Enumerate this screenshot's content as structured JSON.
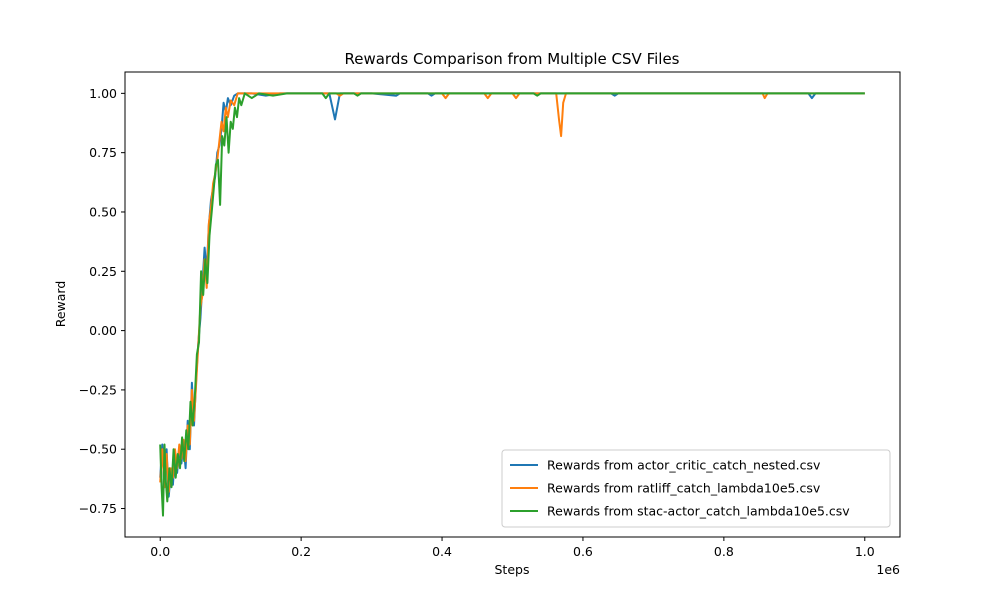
{
  "chart_data": {
    "type": "line",
    "title": "Rewards Comparison from Multiple CSV Files",
    "xlabel": "Steps",
    "ylabel": "Reward",
    "x_offset_label": "1e6",
    "xlim": [
      -50000,
      1050000
    ],
    "ylim": [
      -0.87,
      1.09
    ],
    "x_ticks": [
      0,
      200000,
      400000,
      600000,
      800000,
      1000000
    ],
    "x_tick_labels": [
      "0.0",
      "0.2",
      "0.4",
      "0.6",
      "0.8",
      "1.0"
    ],
    "y_ticks": [
      -0.75,
      -0.5,
      -0.25,
      0.0,
      0.25,
      0.5,
      0.75,
      1.0
    ],
    "y_tick_labels": [
      "−0.75",
      "−0.50",
      "−0.25",
      "0.00",
      "0.25",
      "0.50",
      "0.75",
      "1.00"
    ],
    "grid": false,
    "legend_position": "lower-right",
    "series": [
      {
        "name": "Rewards from actor_critic_catch_nested.csv",
        "color": "#1f77b4",
        "points": [
          [
            0,
            -0.62
          ],
          [
            3000,
            -0.48
          ],
          [
            6000,
            -0.66
          ],
          [
            9000,
            -0.5
          ],
          [
            12000,
            -0.7
          ],
          [
            15000,
            -0.6
          ],
          [
            18000,
            -0.65
          ],
          [
            21000,
            -0.52
          ],
          [
            24000,
            -0.6
          ],
          [
            27000,
            -0.5
          ],
          [
            30000,
            -0.56
          ],
          [
            33000,
            -0.48
          ],
          [
            36000,
            -0.58
          ],
          [
            39000,
            -0.38
          ],
          [
            42000,
            -0.5
          ],
          [
            45000,
            -0.22
          ],
          [
            48000,
            -0.4
          ],
          [
            51000,
            -0.2
          ],
          [
            54000,
            -0.05
          ],
          [
            57000,
            0.05
          ],
          [
            60000,
            0.2
          ],
          [
            63000,
            0.35
          ],
          [
            66000,
            0.25
          ],
          [
            69000,
            0.44
          ],
          [
            72000,
            0.55
          ],
          [
            75000,
            0.6
          ],
          [
            78000,
            0.65
          ],
          [
            81000,
            0.75
          ],
          [
            84000,
            0.78
          ],
          [
            87000,
            0.85
          ],
          [
            90000,
            0.96
          ],
          [
            93000,
            0.92
          ],
          [
            96000,
            0.98
          ],
          [
            100000,
            0.95
          ],
          [
            105000,
            0.99
          ],
          [
            110000,
            1.0
          ],
          [
            130000,
            1.0
          ],
          [
            150000,
            0.99
          ],
          [
            170000,
            1.0
          ],
          [
            200000,
            1.0
          ],
          [
            240000,
            1.0
          ],
          [
            248000,
            0.89
          ],
          [
            255000,
            1.0
          ],
          [
            300000,
            1.0
          ],
          [
            335000,
            0.99
          ],
          [
            340000,
            1.0
          ],
          [
            380000,
            1.0
          ],
          [
            385000,
            0.99
          ],
          [
            390000,
            1.0
          ],
          [
            500000,
            1.0
          ],
          [
            640000,
            1.0
          ],
          [
            645000,
            0.99
          ],
          [
            650000,
            1.0
          ],
          [
            920000,
            1.0
          ],
          [
            925000,
            0.98
          ],
          [
            930000,
            1.0
          ],
          [
            1000000,
            1.0
          ]
        ]
      },
      {
        "name": "Rewards from ratliff_catch_lambda10e5.csv",
        "color": "#ff7f0e",
        "points": [
          [
            0,
            -0.64
          ],
          [
            3000,
            -0.5
          ],
          [
            6000,
            -0.66
          ],
          [
            9000,
            -0.52
          ],
          [
            12000,
            -0.68
          ],
          [
            15000,
            -0.58
          ],
          [
            18000,
            -0.62
          ],
          [
            21000,
            -0.5
          ],
          [
            24000,
            -0.58
          ],
          [
            27000,
            -0.48
          ],
          [
            30000,
            -0.54
          ],
          [
            33000,
            -0.46
          ],
          [
            36000,
            -0.55
          ],
          [
            39000,
            -0.4
          ],
          [
            42000,
            -0.48
          ],
          [
            45000,
            -0.25
          ],
          [
            48000,
            -0.38
          ],
          [
            51000,
            -0.22
          ],
          [
            54000,
            -0.06
          ],
          [
            57000,
            0.1
          ],
          [
            60000,
            0.15
          ],
          [
            63000,
            0.3
          ],
          [
            66000,
            0.18
          ],
          [
            69000,
            0.45
          ],
          [
            72000,
            0.52
          ],
          [
            75000,
            0.62
          ],
          [
            78000,
            0.66
          ],
          [
            81000,
            0.72
          ],
          [
            84000,
            0.8
          ],
          [
            87000,
            0.88
          ],
          [
            90000,
            0.84
          ],
          [
            93000,
            0.94
          ],
          [
            96000,
            0.9
          ],
          [
            100000,
            0.97
          ],
          [
            105000,
            0.95
          ],
          [
            110000,
            1.0
          ],
          [
            150000,
            1.0
          ],
          [
            250000,
            1.0
          ],
          [
            255000,
            0.99
          ],
          [
            260000,
            1.0
          ],
          [
            400000,
            1.0
          ],
          [
            405000,
            0.98
          ],
          [
            410000,
            1.0
          ],
          [
            460000,
            1.0
          ],
          [
            465000,
            0.98
          ],
          [
            470000,
            1.0
          ],
          [
            500000,
            1.0
          ],
          [
            505000,
            0.98
          ],
          [
            510000,
            1.0
          ],
          [
            562000,
            1.0
          ],
          [
            566000,
            0.89
          ],
          [
            569000,
            0.82
          ],
          [
            572000,
            0.96
          ],
          [
            576000,
            1.0
          ],
          [
            855000,
            1.0
          ],
          [
            858000,
            0.98
          ],
          [
            862000,
            1.0
          ],
          [
            1000000,
            1.0
          ]
        ]
      },
      {
        "name": "Rewards from stac-actor_catch_lambda10e5.csv",
        "color": "#2ca02c",
        "points": [
          [
            0,
            -0.48
          ],
          [
            2000,
            -0.66
          ],
          [
            4000,
            -0.78
          ],
          [
            6000,
            -0.48
          ],
          [
            8000,
            -0.64
          ],
          [
            10000,
            -0.72
          ],
          [
            13000,
            -0.58
          ],
          [
            16000,
            -0.66
          ],
          [
            19000,
            -0.5
          ],
          [
            22000,
            -0.62
          ],
          [
            25000,
            -0.52
          ],
          [
            28000,
            -0.58
          ],
          [
            31000,
            -0.45
          ],
          [
            34000,
            -0.55
          ],
          [
            37000,
            -0.42
          ],
          [
            40000,
            -0.5
          ],
          [
            43000,
            -0.3
          ],
          [
            46000,
            -0.4
          ],
          [
            49000,
            -0.28
          ],
          [
            52000,
            -0.1
          ],
          [
            55000,
            -0.05
          ],
          [
            58000,
            0.25
          ],
          [
            61000,
            0.15
          ],
          [
            64000,
            0.3
          ],
          [
            67000,
            0.2
          ],
          [
            70000,
            0.4
          ],
          [
            73000,
            0.5
          ],
          [
            76000,
            0.6
          ],
          [
            79000,
            0.7
          ],
          [
            82000,
            0.72
          ],
          [
            85000,
            0.53
          ],
          [
            88000,
            0.82
          ],
          [
            91000,
            0.78
          ],
          [
            94000,
            0.9
          ],
          [
            97000,
            0.75
          ],
          [
            100000,
            0.88
          ],
          [
            103000,
            0.85
          ],
          [
            106000,
            0.94
          ],
          [
            109000,
            0.9
          ],
          [
            112000,
            0.98
          ],
          [
            115000,
            0.95
          ],
          [
            120000,
            1.0
          ],
          [
            130000,
            0.98
          ],
          [
            140000,
            1.0
          ],
          [
            160000,
            0.99
          ],
          [
            180000,
            1.0
          ],
          [
            200000,
            1.0
          ],
          [
            230000,
            1.0
          ],
          [
            235000,
            0.98
          ],
          [
            240000,
            1.0
          ],
          [
            275000,
            1.0
          ],
          [
            280000,
            0.99
          ],
          [
            285000,
            1.0
          ],
          [
            530000,
            1.0
          ],
          [
            535000,
            0.99
          ],
          [
            540000,
            1.0
          ],
          [
            1000000,
            1.0
          ]
        ]
      }
    ]
  }
}
